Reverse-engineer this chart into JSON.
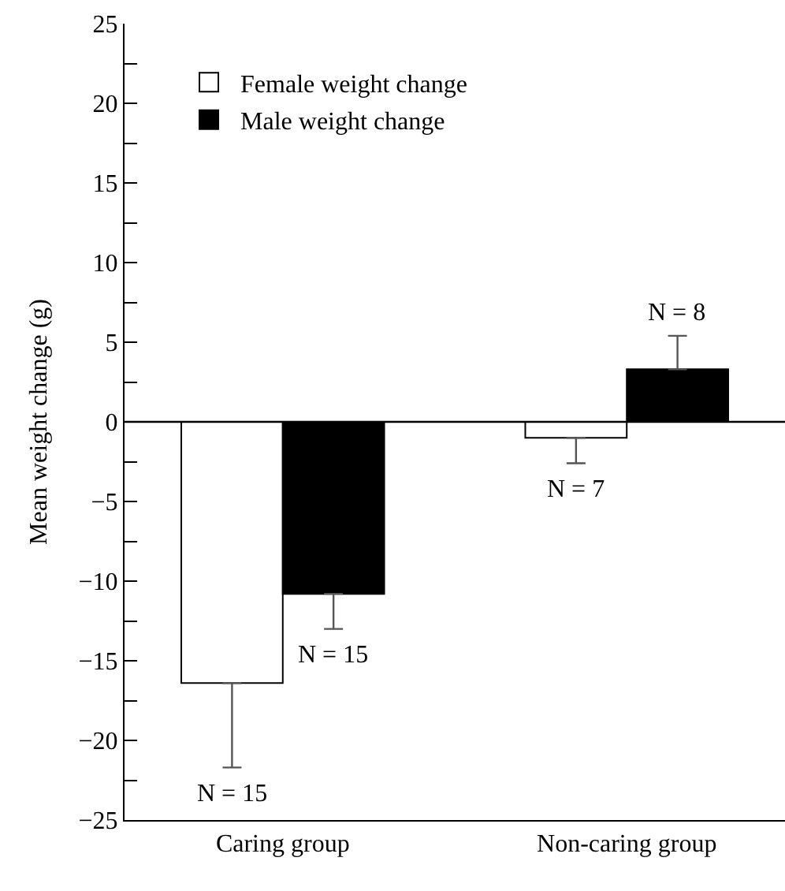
{
  "chart_data": {
    "type": "bar",
    "ylabel": "Mean weight change (g)",
    "categories": [
      "Caring group",
      "Non-caring group"
    ],
    "series": [
      {
        "name": "Female weight change",
        "color": "#ffffff",
        "values": [
          -16.4,
          -1.0
        ],
        "errors": [
          [
            -21.7,
            -16.4
          ],
          [
            -2.6,
            -1.0
          ]
        ]
      },
      {
        "name": "Male weight change",
        "color": "#000000",
        "values": [
          -10.8,
          3.3
        ],
        "errors": [
          [
            -13.0,
            -10.8
          ],
          [
            3.3,
            5.4
          ]
        ]
      }
    ],
    "annotations": [
      "N = 15",
      "N = 15",
      "N = 7",
      "N = 8"
    ],
    "ylim": [
      -25,
      25
    ],
    "yticks": [
      -25,
      {
        "value": -22.5,
        "label": null
      },
      -20,
      {
        "value": -17.5,
        "label": null
      },
      -15,
      {
        "value": -12.5,
        "label": null
      },
      -10,
      {
        "value": -7.5,
        "label": null
      },
      -5,
      {
        "value": -2.5,
        "label": null
      },
      0,
      {
        "value": 2.5,
        "label": null
      },
      5,
      {
        "value": 7.5,
        "label": null
      },
      10,
      {
        "value": 12.5,
        "label": null
      },
      15,
      {
        "value": 17.5,
        "label": null
      },
      20,
      {
        "value": 22.5,
        "label": null
      },
      25
    ],
    "ref_lines": [
      {
        "axis": "y",
        "value": 0,
        "color": "#000000"
      }
    ],
    "legend": "top left"
  }
}
